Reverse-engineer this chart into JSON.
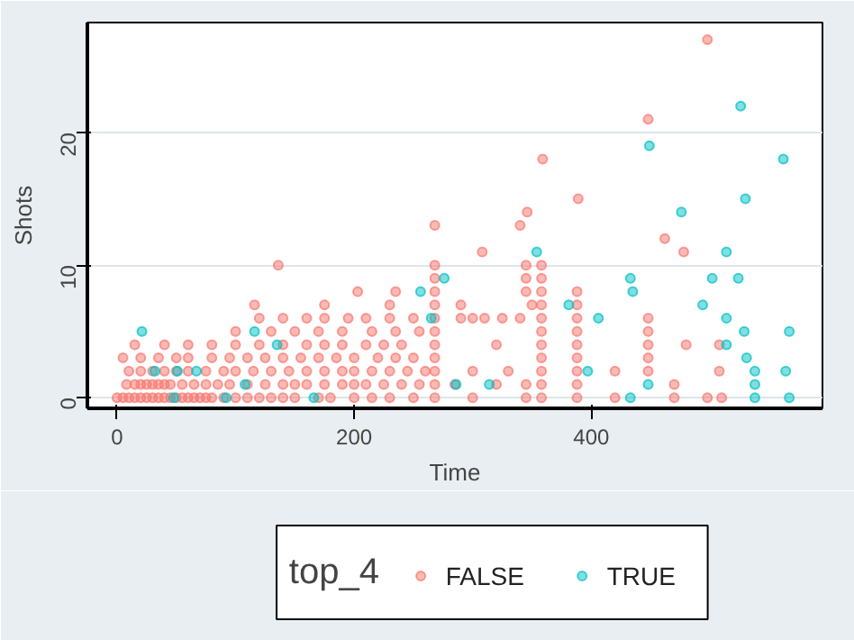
{
  "chart_data": {
    "type": "scatter",
    "xlabel": "Time",
    "ylabel": "Shots",
    "legend_title": "top_4",
    "legend": "bottom",
    "grid": "y",
    "marker": "circle",
    "xlim": [
      -25,
      595
    ],
    "ylim": [
      -0.8,
      28.3
    ],
    "xticks": [
      0,
      200,
      400
    ],
    "yticks": [
      0,
      10,
      20
    ],
    "series": [
      {
        "name": "FALSE",
        "color": "#f8766d",
        "x": [
          0,
          5,
          10,
          15,
          20,
          25,
          30,
          35,
          40,
          45,
          50,
          55,
          60,
          65,
          70,
          75,
          80,
          90,
          100,
          110,
          120,
          130,
          140,
          150,
          170,
          180,
          200,
          215,
          230,
          250,
          268,
          300,
          345,
          358,
          388,
          420,
          470,
          498,
          510,
          8,
          15,
          20,
          25,
          30,
          35,
          40,
          45,
          55,
          65,
          75,
          85,
          95,
          110,
          125,
          140,
          150,
          160,
          175,
          190,
          200,
          210,
          225,
          240,
          255,
          268,
          285,
          320,
          345,
          358,
          388,
          470,
          10,
          20,
          30,
          40,
          50,
          60,
          75,
          90,
          100,
          115,
          130,
          145,
          160,
          175,
          190,
          200,
          215,
          230,
          245,
          260,
          268,
          300,
          330,
          358,
          388,
          420,
          448,
          508,
          5,
          20,
          35,
          50,
          60,
          80,
          95,
          110,
          125,
          140,
          155,
          170,
          185,
          200,
          220,
          235,
          250,
          268,
          358,
          388,
          448,
          15,
          40,
          60,
          80,
          100,
          120,
          140,
          160,
          175,
          190,
          210,
          225,
          240,
          268,
          320,
          358,
          388,
          448,
          480,
          508,
          100,
          130,
          150,
          170,
          190,
          215,
          235,
          255,
          268,
          358,
          388,
          448,
          120,
          140,
          160,
          175,
          195,
          210,
          230,
          250,
          268,
          290,
          300,
          310,
          325,
          340,
          358,
          388,
          448,
          116,
          175,
          230,
          268,
          290,
          350,
          358,
          388,
          203,
          235,
          268,
          345,
          358,
          388,
          268,
          345,
          358,
          136,
          268,
          345,
          358,
          308,
          478,
          462,
          340,
          346,
          268,
          389,
          359,
          448,
          498
        ],
        "values": [
          0,
          0,
          0,
          0,
          0,
          0,
          0,
          0,
          0,
          0,
          0,
          0,
          0,
          0,
          0,
          0,
          0,
          0,
          0,
          0,
          0,
          0,
          0,
          0,
          0,
          0,
          0,
          0,
          0,
          0,
          0,
          0,
          0,
          0,
          0,
          0,
          0,
          0,
          0,
          1,
          1,
          1,
          1,
          1,
          1,
          1,
          1,
          1,
          1,
          1,
          1,
          1,
          1,
          1,
          1,
          1,
          1,
          1,
          1,
          1,
          1,
          1,
          1,
          1,
          1,
          1,
          1,
          1,
          1,
          1,
          1,
          2,
          2,
          2,
          2,
          2,
          2,
          2,
          2,
          2,
          2,
          2,
          2,
          2,
          2,
          2,
          2,
          2,
          2,
          2,
          2,
          2,
          2,
          2,
          2,
          2,
          2,
          2,
          2,
          3,
          3,
          3,
          3,
          3,
          3,
          3,
          3,
          3,
          3,
          3,
          3,
          3,
          3,
          3,
          3,
          3,
          3,
          3,
          3,
          3,
          4,
          4,
          4,
          4,
          4,
          4,
          4,
          4,
          4,
          4,
          4,
          4,
          4,
          4,
          4,
          4,
          4,
          4,
          4,
          4,
          5,
          5,
          5,
          5,
          5,
          5,
          5,
          5,
          5,
          5,
          5,
          5,
          6,
          6,
          6,
          6,
          6,
          6,
          6,
          6,
          6,
          6,
          6,
          6,
          6,
          6,
          6,
          6,
          6,
          7,
          7,
          7,
          7,
          7,
          7,
          7,
          7,
          8,
          8,
          8,
          8,
          8,
          8,
          9,
          9,
          9,
          10,
          10,
          10,
          10,
          11,
          11,
          12,
          13,
          14,
          13,
          15,
          18,
          21,
          27
        ]
      },
      {
        "name": "TRUE",
        "color": "#00bfc4",
        "x": [
          21,
          32,
          51,
          67,
          48,
          92,
          108,
          166,
          135,
          116,
          256,
          265,
          276,
          286,
          314,
          354,
          381,
          397,
          406,
          433,
          435,
          433,
          448,
          449,
          476,
          494,
          502,
          514,
          514,
          524,
          526,
          529,
          530,
          531,
          538,
          538,
          538,
          562,
          564,
          567,
          567,
          514
        ],
        "values": [
          5,
          2,
          2,
          2,
          0,
          0,
          1,
          0,
          4,
          5,
          8,
          6,
          9,
          1,
          1,
          11,
          7,
          2,
          6,
          9,
          8,
          0,
          1,
          19,
          14,
          7,
          9,
          11,
          6,
          9,
          22,
          5,
          15,
          3,
          2,
          1,
          0,
          18,
          2,
          5,
          0,
          4
        ]
      }
    ]
  }
}
